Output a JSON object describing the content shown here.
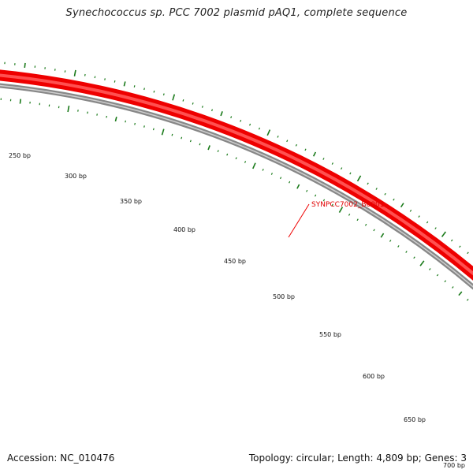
{
  "title": "Synechococcus sp. PCC 7002 plasmid pAQ1, complete sequence",
  "accession": "Accession: NC_010476",
  "summary": "Topology: circular; Length: 4,809 bp; Genes: 3",
  "gene": {
    "label": "SYNPCC7002_B0001",
    "color": "#ee0000"
  },
  "backbone_color": "#888888",
  "tick_color": "#1a7a1a",
  "scale_labels": [
    "250 bp",
    "300 bp",
    "350 bp",
    "400 bp",
    "450 bp",
    "500 bp",
    "550 bp",
    "600 bp",
    "650 bp",
    "700 bp"
  ]
}
